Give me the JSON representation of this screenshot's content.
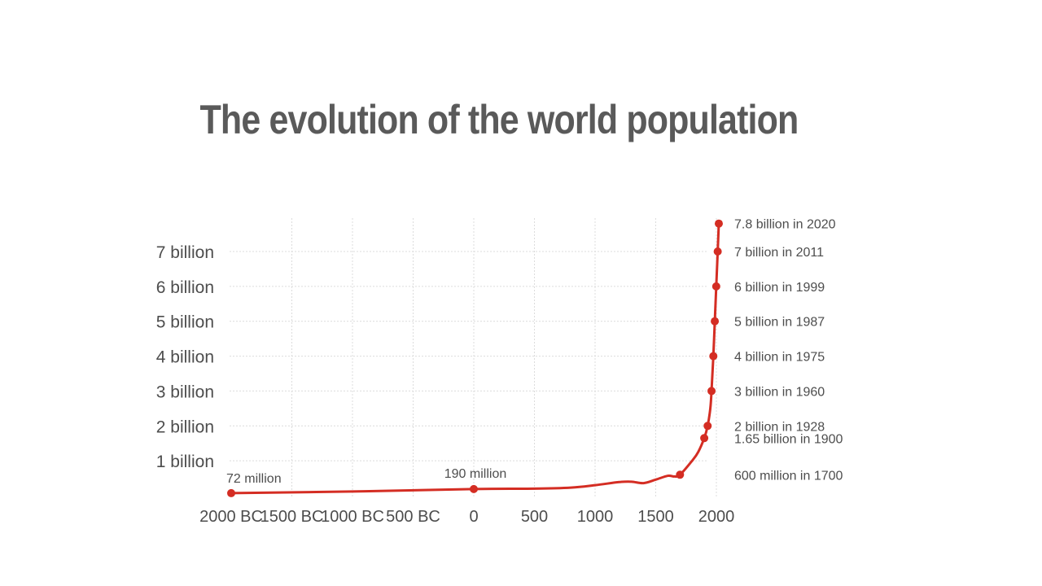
{
  "chart_data": {
    "type": "line",
    "title": "The evolution of the world population",
    "xlabel": "",
    "ylabel": "",
    "xlim": [
      -2000,
      2020
    ],
    "ylim": [
      0,
      7.8
    ],
    "grid": true,
    "x_ticks": [
      {
        "value": -2000,
        "label": "2000 BC"
      },
      {
        "value": -1500,
        "label": "1500 BC"
      },
      {
        "value": -1000,
        "label": "1000 BC"
      },
      {
        "value": -500,
        "label": "500 BC"
      },
      {
        "value": 0,
        "label": "0"
      },
      {
        "value": 500,
        "label": "500"
      },
      {
        "value": 1000,
        "label": "1000"
      },
      {
        "value": 1500,
        "label": "1500"
      },
      {
        "value": 2000,
        "label": "2000"
      }
    ],
    "y_ticks": [
      {
        "value": 1,
        "label": "1 billion"
      },
      {
        "value": 2,
        "label": "2 billion"
      },
      {
        "value": 3,
        "label": "3 billion"
      },
      {
        "value": 4,
        "label": "4 billion"
      },
      {
        "value": 5,
        "label": "5 billion"
      },
      {
        "value": 6,
        "label": "6 billion"
      },
      {
        "value": 7,
        "label": "7 billion"
      }
    ],
    "line_color": "#d42d23",
    "series": [
      {
        "x": [
          -2000,
          -1000,
          0,
          500,
          800,
          1000,
          1200,
          1300,
          1400,
          1500,
          1600,
          1650,
          1700,
          1800,
          1850,
          1900,
          1928,
          1950,
          1960,
          1975,
          1987,
          1999,
          2011,
          2020
        ],
        "values": [
          0.072,
          0.12,
          0.19,
          0.2,
          0.23,
          0.3,
          0.39,
          0.4,
          0.36,
          0.46,
          0.57,
          0.55,
          0.6,
          1.0,
          1.25,
          1.65,
          2.0,
          2.5,
          3.0,
          4.0,
          5.0,
          6.0,
          7.0,
          7.8
        ]
      }
    ],
    "points": [
      {
        "x": -2000,
        "y": 0.072,
        "label": "72 million"
      },
      {
        "x": 0,
        "y": 0.19,
        "label": "190 million"
      },
      {
        "x": 1700,
        "y": 0.6,
        "label": "600 million in 1700"
      },
      {
        "x": 1900,
        "y": 1.65,
        "label": "1.65 billion in 1900"
      },
      {
        "x": 1928,
        "y": 2.0,
        "label": "2 billion in 1928"
      },
      {
        "x": 1960,
        "y": 3.0,
        "label": "3 billion in 1960"
      },
      {
        "x": 1975,
        "y": 4.0,
        "label": "4 billion in 1975"
      },
      {
        "x": 1987,
        "y": 5.0,
        "label": "5 billion in 1987"
      },
      {
        "x": 1999,
        "y": 6.0,
        "label": "6 billion in 1999"
      },
      {
        "x": 2011,
        "y": 7.0,
        "label": "7 billion in 2011"
      },
      {
        "x": 2020,
        "y": 7.8,
        "label": "7.8 billion in 2020"
      }
    ]
  }
}
